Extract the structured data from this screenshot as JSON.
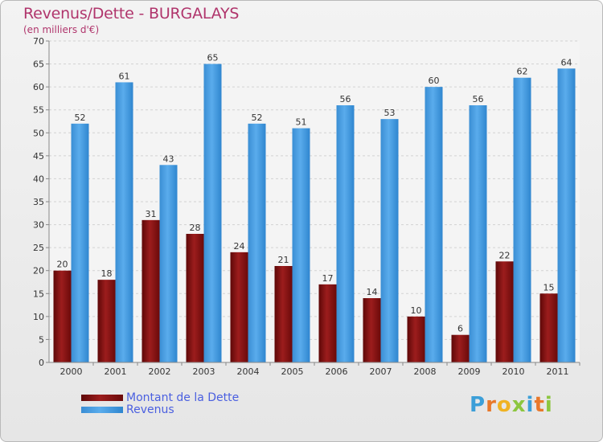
{
  "header": {
    "title": "Revenus/Dette - BURGALAYS",
    "subtitle": "(en milliers d'€)"
  },
  "chart_data": {
    "type": "bar",
    "title": "Revenus/Dette - BURGALAYS",
    "subtitle": "(en milliers d'€)",
    "xlabel": "",
    "ylabel": "",
    "ylim": [
      0,
      70
    ],
    "yticks": [
      0,
      5,
      10,
      15,
      20,
      25,
      30,
      35,
      40,
      45,
      50,
      55,
      60,
      65,
      70
    ],
    "grid": true,
    "legend_position": "bottom-left",
    "categories": [
      "2000",
      "2001",
      "2002",
      "2003",
      "2004",
      "2005",
      "2006",
      "2007",
      "2008",
      "2009",
      "2010",
      "2011"
    ],
    "series": [
      {
        "name": "Montant de la Dette",
        "color": "#7a0c0c",
        "values": [
          20,
          18,
          31,
          28,
          24,
          21,
          17,
          14,
          10,
          6,
          22,
          15
        ]
      },
      {
        "name": "Revenus",
        "color": "#3f97dc",
        "values": [
          52,
          61,
          43,
          65,
          52,
          51,
          56,
          53,
          60,
          56,
          62,
          64
        ]
      }
    ]
  },
  "legend": {
    "items": [
      {
        "label": "Montant de la Dette",
        "color": "#7a0c0c"
      },
      {
        "label": "Revenus",
        "color": "#3f97dc"
      }
    ]
  },
  "logo": {
    "text": "Proxiti",
    "letters": [
      {
        "ch": "P",
        "color": "#3c9fd8"
      },
      {
        "ch": "r",
        "color": "#e8782a"
      },
      {
        "ch": "o",
        "color": "#f0b323"
      },
      {
        "ch": "x",
        "color": "#8cc63f"
      },
      {
        "ch": "i",
        "color": "#3c9fd8"
      },
      {
        "ch": "t",
        "color": "#e8782a"
      },
      {
        "ch": "i",
        "color": "#8cc63f"
      }
    ]
  }
}
